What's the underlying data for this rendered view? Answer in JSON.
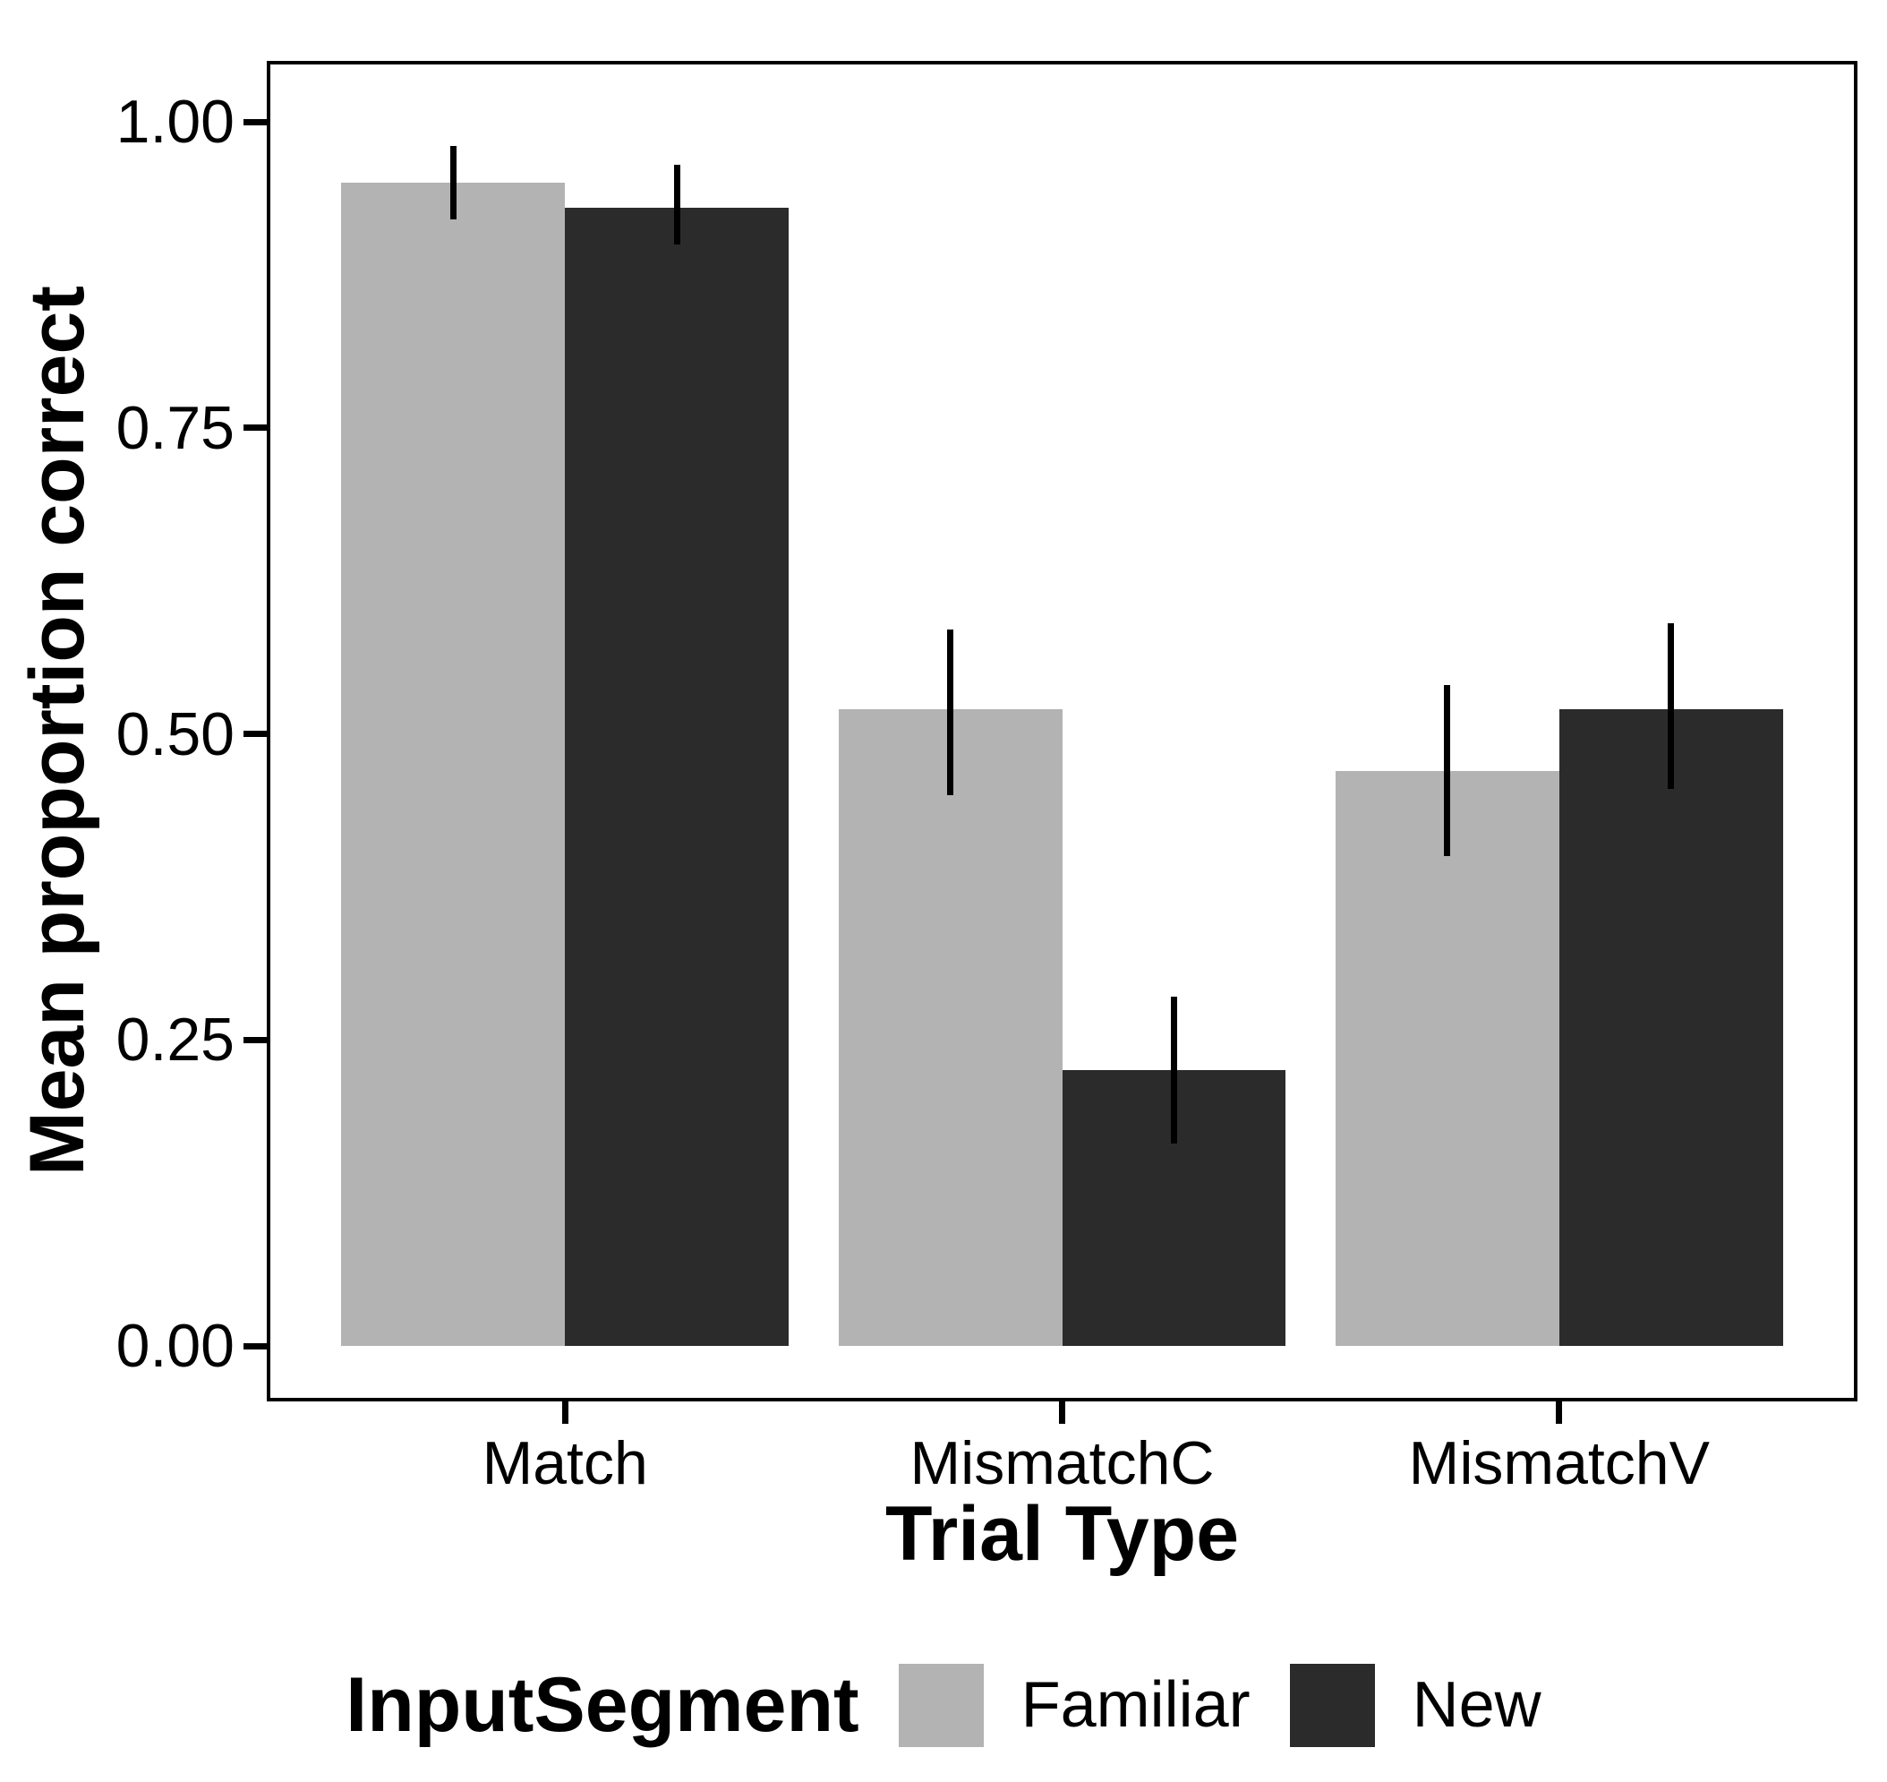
{
  "figure": {
    "background": "#ffffff",
    "text_color": "#000000"
  },
  "chart_data": {
    "type": "bar",
    "title": "",
    "xlabel": "Trial Type",
    "ylabel": "Mean proportion correct",
    "categories": [
      "Match",
      "MismatchC",
      "MismatchV"
    ],
    "series": [
      {
        "name": "Familiar",
        "color": "#b3b3b3",
        "values": [
          0.95,
          0.52,
          0.47
        ],
        "error_low": [
          0.92,
          0.45,
          0.4
        ],
        "error_high": [
          0.98,
          0.585,
          0.54
        ]
      },
      {
        "name": "New",
        "color": "#2b2b2b",
        "values": [
          0.93,
          0.225,
          0.52
        ],
        "error_low": [
          0.9,
          0.165,
          0.455
        ],
        "error_high": [
          0.965,
          0.285,
          0.59
        ]
      }
    ],
    "ylim": [
      0,
      1.05
    ],
    "y_ticks": [
      {
        "label": "1.00",
        "value": 1.0
      },
      {
        "label": "0.75",
        "value": 0.75
      },
      {
        "label": "0.50",
        "value": 0.5
      },
      {
        "label": "0.25",
        "value": 0.25
      },
      {
        "label": "0.00",
        "value": 0.0
      }
    ],
    "grid": false,
    "error_bar_color": "#000000",
    "legend": {
      "title": "InputSegment",
      "position": "bottom"
    }
  }
}
